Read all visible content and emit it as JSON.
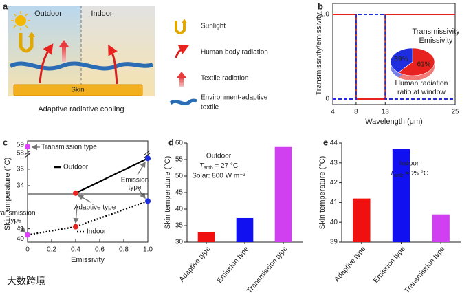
{
  "panel_labels": [
    "a",
    "b",
    "c",
    "d",
    "e"
  ],
  "diagram": {
    "outdoor": "Outdoor",
    "indoor": "Indoor",
    "skin": "Skin",
    "caption": "Adaptive radiative cooling",
    "legend": [
      [
        "Sunlight"
      ],
      [
        "Human body radiation"
      ],
      [
        "Textile radiation"
      ],
      [
        "Environment-adaptive",
        "textile"
      ]
    ]
  },
  "chart_data": [
    {
      "type": "line",
      "xlabel": "Wavelength (μm)",
      "ylabel": "Transmissivity/emissivity",
      "xlim": [
        4,
        25
      ],
      "ylim": [
        -0.065,
        1.13
      ],
      "xticks": [
        4,
        8,
        13,
        25
      ],
      "yticks": [
        0,
        {
          "value": 1,
          "label": "1.0"
        }
      ],
      "series": [
        {
          "name": "Transmissivity",
          "color": "#e8231f",
          "style": "solid",
          "x": [
            4,
            8,
            8,
            13,
            13,
            25
          ],
          "values": [
            1,
            1,
            0,
            0,
            1,
            1
          ]
        },
        {
          "name": "Emissivity",
          "color": "#1f2de0",
          "style": "dashed",
          "x": [
            4,
            8,
            8,
            13,
            13,
            25
          ],
          "values": [
            0,
            0,
            1,
            1,
            0,
            0
          ]
        }
      ],
      "inset": {
        "type": "pie",
        "values": [
          61,
          39
        ],
        "value_labels": [
          "61%",
          "39%"
        ],
        "colors": [
          "#e8231f",
          "#1f2de0"
        ],
        "title": [
          "Human radiation",
          "ratio at window"
        ]
      }
    },
    {
      "type": "line",
      "xlabel": "Emissivity",
      "ylabel": "Skin temperature (°C)",
      "xlim": [
        0,
        1
      ],
      "xticks": [
        0,
        0.2,
        0.4,
        0.6,
        0.8,
        {
          "value": 1,
          "label": "1.0"
        }
      ],
      "y_segments": [
        {
          "ylim": [
            57.5,
            59.5
          ],
          "yticks": [
            58,
            59
          ]
        },
        {
          "ylim": [
            33,
            37.4
          ],
          "yticks": [
            34,
            36
          ]
        },
        {
          "ylim": [
            39.7,
            44.4
          ],
          "yticks": [
            40,
            41
          ]
        }
      ],
      "series": [
        {
          "name": "Outdoor",
          "color": "#000000",
          "style": "solid",
          "x": [
            0,
            0.4,
            1
          ],
          "values": [
            58.8,
            33.1,
            37.3
          ]
        },
        {
          "name": "Indoor",
          "color": "#000000",
          "style": "dotted",
          "x": [
            0,
            0.4,
            1
          ],
          "values": [
            40.4,
            41.2,
            43.7
          ]
        }
      ],
      "point_colors": [
        "#e040fb",
        "#e8231f",
        "#1f2de0"
      ],
      "annotations": [
        [
          "Transmission type"
        ],
        [
          "Adaptive type"
        ],
        [
          "Emission",
          "type"
        ],
        [
          "Transmission",
          "type"
        ]
      ]
    },
    {
      "type": "bar",
      "ylabel": "Skin temperature (°C)",
      "categories": [
        "Adaptive type",
        "Emission type",
        "Transmission type"
      ],
      "values": [
        33.1,
        37.3,
        58.8
      ],
      "colors": [
        "#f01010",
        "#1010f0",
        "#d040f0"
      ],
      "ylim": [
        30,
        60
      ],
      "yticks": [
        30,
        35,
        40,
        45,
        50,
        55,
        60
      ],
      "annotations": {
        "condition": "Outdoor",
        "temperature": [
          "T",
          "amb",
          " = 27 °C"
        ],
        "solar": "Solar: 800 W m⁻²"
      }
    },
    {
      "type": "bar",
      "ylabel": "Skin temperature (°C)",
      "categories": [
        "Adaptive type",
        "Emission type",
        "Transmission type"
      ],
      "values": [
        41.2,
        43.7,
        40.4
      ],
      "colors": [
        "#f01010",
        "#1010f0",
        "#d040f0"
      ],
      "ylim": [
        39,
        44
      ],
      "yticks": [
        39,
        40,
        41,
        42,
        43,
        44
      ],
      "annotations": {
        "condition": "Indoor",
        "temperature": [
          "T",
          "amb",
          " = 25 °C"
        ]
      }
    }
  ],
  "watermark": "大数跨境"
}
